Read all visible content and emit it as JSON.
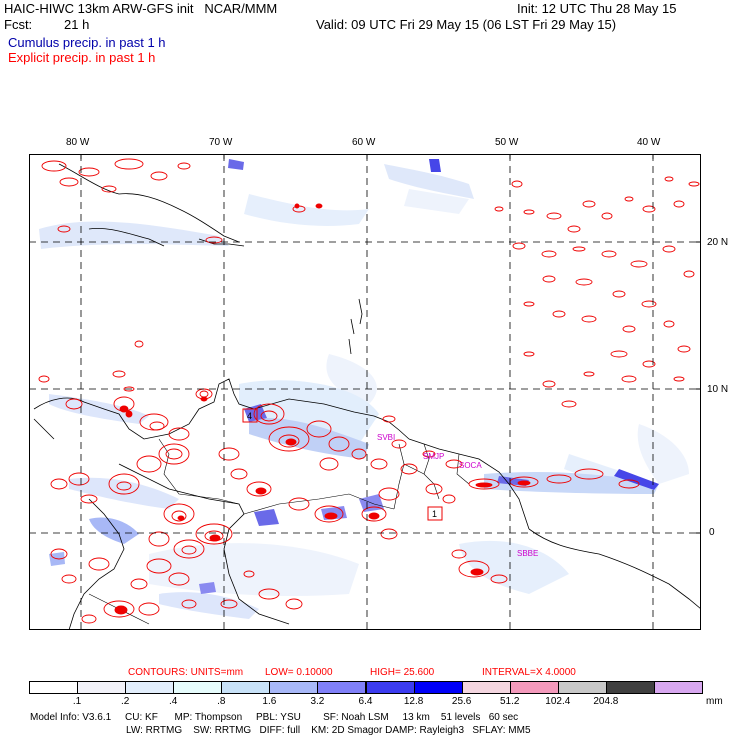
{
  "header": {
    "model_line": "HAIC-HIWC 13km ARW-GFS init   NCAR/MMM",
    "init_line": "Init: 12 UTC Thu 28 May 15",
    "fcst_label": "Fcst:",
    "fcst_value": "21 h",
    "valid_line": "Valid: 09 UTC Fri 29 May 15 (06 LST Fri 29 May 15)",
    "cumulus_label": "Cumulus precip. in past 1 h",
    "explicit_label": "Explicit precip. in past 1 h"
  },
  "colors": {
    "cumulus": "#0000aa",
    "explicit": "#ff0000",
    "station": "#cc00cc"
  },
  "map": {
    "lon_labels": [
      "80 W",
      "70 W",
      "60 W",
      "50 W",
      "40 W"
    ],
    "lat_labels": [
      "20 N",
      "10 N",
      "0"
    ],
    "stations": [
      "SVBI",
      "SMJP",
      "SOCA",
      "SBBE"
    ],
    "boxes": [
      "4",
      "1"
    ]
  },
  "contour_info": {
    "title": "CONTOURS:  UNITS=mm",
    "low": "LOW= 0.10000",
    "high": "HIGH=  25.600",
    "interval": "INTERVAL=X  4.0000"
  },
  "legend": {
    "labels": [
      ".1",
      ".2",
      ".4",
      ".8",
      "1.6",
      "3.2",
      "6.4",
      "12.8",
      "25.6",
      "51.2",
      "102.4",
      "204.8"
    ],
    "unit": "mm",
    "colors": [
      "#ffffff",
      "#f2f2f9",
      "#e2eefc",
      "#e6fcfc",
      "#c8e2f8",
      "#a8b8f8",
      "#8080f8",
      "#3c3cf0",
      "#0000f8",
      "#f4d6e0",
      "#f49abc",
      "#c8c8c8",
      "#404040",
      "#d8a8f0"
    ]
  },
  "model_info": {
    "line1": "Model Info: V3.6.1     CU: KF      MP: Thompson     PBL: YSU        SF: Noah LSM     13 km    51 levels   60 sec",
    "line2": "LW: RRTMG    SW: RRTMG   DIFF: full    KM: 2D Smagor DAMP: Rayleigh3   SFLAY: MM5"
  }
}
